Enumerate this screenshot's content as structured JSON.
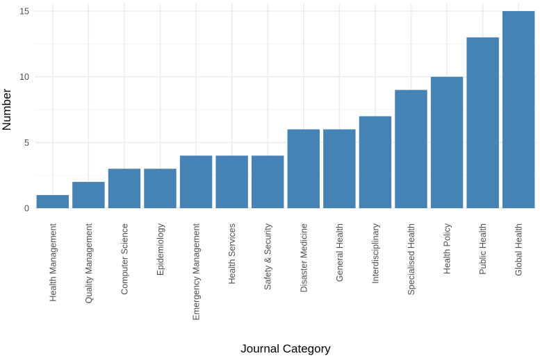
{
  "chart_data": {
    "type": "bar",
    "title": "",
    "xlabel": "Journal Category",
    "ylabel": "Number",
    "categories": [
      "Health Management",
      "Quality Management",
      "Computer Science",
      "Epidemiology",
      "Emergency Management",
      "Health Services",
      "Safety & Security",
      "Disaster Medicine",
      "General Health",
      "Interdisciplinary",
      "Specialised Health",
      "Health Policy",
      "Public Health",
      "Global Health"
    ],
    "values": [
      1,
      2,
      3,
      3,
      4,
      4,
      4,
      6,
      6,
      7,
      9,
      10,
      13,
      15
    ],
    "ylim": [
      0,
      15
    ],
    "yticks": [
      0,
      5,
      10,
      15
    ],
    "bar_color": "#4682b4",
    "grid": true,
    "legend": "none"
  }
}
